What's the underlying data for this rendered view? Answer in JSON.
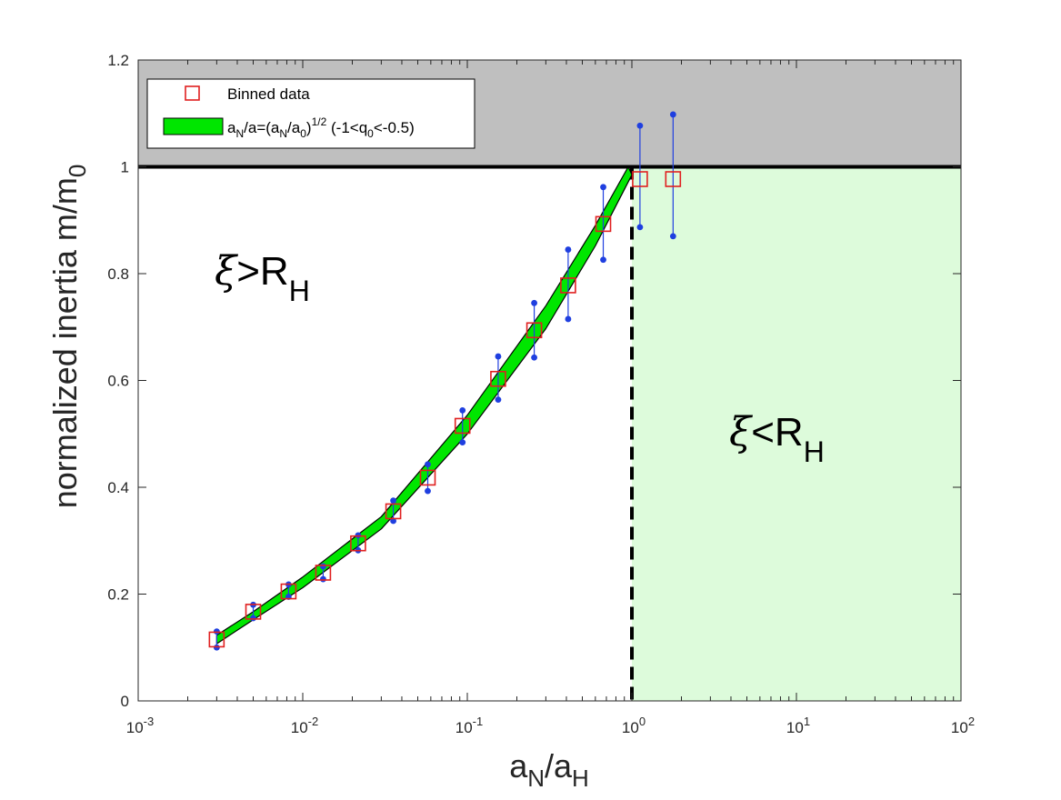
{
  "chart_data": {
    "type": "scatter",
    "xscale": "log",
    "xlim": [
      0.001,
      100
    ],
    "ylim": [
      0,
      1.2
    ],
    "x_ticks": [
      0.001,
      0.01,
      0.1,
      1,
      10,
      100
    ],
    "x_tick_labels": [
      {
        "base": "10",
        "exp": "-3"
      },
      {
        "base": "10",
        "exp": "-2"
      },
      {
        "base": "10",
        "exp": "-1"
      },
      {
        "base": "10",
        "exp": "0"
      },
      {
        "base": "10",
        "exp": "1"
      },
      {
        "base": "10",
        "exp": "2"
      }
    ],
    "y_ticks": [
      0,
      0.2,
      0.4,
      0.6,
      0.8,
      1,
      1.2
    ],
    "y_tick_labels": [
      "0",
      "0.2",
      "0.4",
      "0.6",
      "0.8",
      "1",
      "1.2"
    ],
    "xlabel": {
      "base": "a",
      "sub1": "N",
      "slash": "/a",
      "sub2": "H"
    },
    "ylabel": {
      "main": "normalized inertia m/m",
      "sub": "0"
    },
    "grid": false,
    "legend_position": "top-left",
    "legend": {
      "binned": "Binned data",
      "band": {
        "t1": "a",
        "s1": "N",
        "t2": "/a=(a",
        "s2": "N",
        "t3": "/a",
        "s3": "0",
        "t4": ")",
        "sup": "1/2",
        "t5": " (-1<q",
        "s4": "0",
        "t6": "<-0.5)"
      }
    },
    "annotations": {
      "left": {
        "symbol": "ξ",
        "text": ">R",
        "sub": "H"
      },
      "right": {
        "symbol": "ξ",
        "text": "<R",
        "sub": "H"
      }
    },
    "reference_lines": {
      "horizontal_y": 1,
      "vertical_x": 1
    },
    "shaded_regions": [
      {
        "name": "gray-region",
        "y_range": [
          1,
          1.2
        ],
        "color": "#bfbfbf"
      },
      {
        "name": "light-green-region",
        "x_range": [
          1,
          100
        ],
        "y_range": [
          0,
          1
        ],
        "color": "#ddfbdb"
      }
    ],
    "series": [
      {
        "name": "Binned data",
        "marker": "open-square",
        "color": "#e02020",
        "points": [
          {
            "x": 0.003,
            "y": 0.115,
            "ylo": 0.1,
            "yhi": 0.13
          },
          {
            "x": 0.005,
            "y": 0.167,
            "ylo": 0.155,
            "yhi": 0.18
          },
          {
            "x": 0.0082,
            "y": 0.205,
            "ylo": 0.195,
            "yhi": 0.218
          },
          {
            "x": 0.0133,
            "y": 0.24,
            "ylo": 0.228,
            "yhi": 0.252
          },
          {
            "x": 0.0217,
            "y": 0.295,
            "ylo": 0.282,
            "yhi": 0.31
          },
          {
            "x": 0.0355,
            "y": 0.355,
            "ylo": 0.337,
            "yhi": 0.375
          },
          {
            "x": 0.0575,
            "y": 0.418,
            "ylo": 0.393,
            "yhi": 0.443
          },
          {
            "x": 0.0935,
            "y": 0.515,
            "ylo": 0.484,
            "yhi": 0.544
          },
          {
            "x": 0.154,
            "y": 0.603,
            "ylo": 0.564,
            "yhi": 0.645
          },
          {
            "x": 0.255,
            "y": 0.694,
            "ylo": 0.643,
            "yhi": 0.745
          },
          {
            "x": 0.41,
            "y": 0.778,
            "ylo": 0.715,
            "yhi": 0.845
          },
          {
            "x": 0.67,
            "y": 0.893,
            "ylo": 0.826,
            "yhi": 0.962
          },
          {
            "x": 1.12,
            "y": 0.977,
            "ylo": 0.887,
            "yhi": 1.077
          },
          {
            "x": 1.78,
            "y": 0.977,
            "ylo": 0.87,
            "yhi": 1.098
          }
        ]
      },
      {
        "name": "band",
        "color": "#00e600",
        "upper": [
          [
            0.003,
            0.123
          ],
          [
            0.005,
            0.167
          ],
          [
            0.01,
            0.232
          ],
          [
            0.03,
            0.345
          ],
          [
            0.1,
            0.535
          ],
          [
            0.3,
            0.74
          ],
          [
            0.6,
            0.89
          ],
          [
            0.95,
            1.0
          ]
        ],
        "lower": [
          [
            0.003,
            0.107
          ],
          [
            0.005,
            0.152
          ],
          [
            0.01,
            0.212
          ],
          [
            0.03,
            0.322
          ],
          [
            0.1,
            0.5
          ],
          [
            0.3,
            0.697
          ],
          [
            0.6,
            0.852
          ],
          [
            1.0,
            0.985
          ]
        ]
      }
    ]
  }
}
